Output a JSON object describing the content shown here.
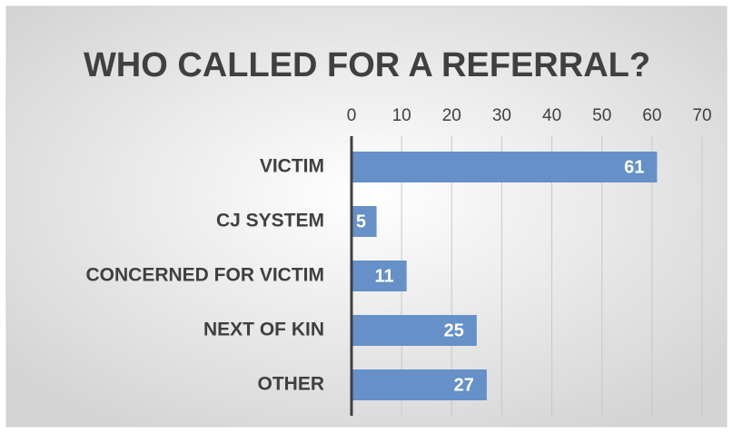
{
  "chart_data": {
    "type": "bar",
    "orientation": "horizontal",
    "title": "WHO CALLED FOR A REFERRAL?",
    "categories": [
      "VICTIM",
      "CJ SYSTEM",
      "CONCERNED FOR VICTIM",
      "NEXT OF KIN",
      "OTHER"
    ],
    "values": [
      61,
      5,
      11,
      25,
      27
    ],
    "color": "#6590c8",
    "xlim": [
      0,
      70
    ],
    "xticks": [
      0,
      10,
      20,
      30,
      40,
      50,
      60,
      70
    ],
    "grid": true
  }
}
